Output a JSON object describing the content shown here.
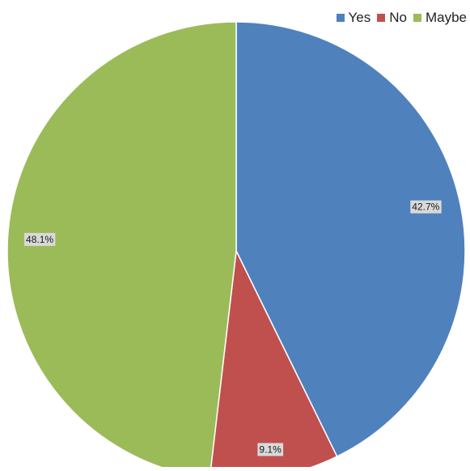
{
  "chart_data": {
    "type": "pie",
    "categories": [
      "Yes",
      "No",
      "Maybe"
    ],
    "values": [
      42.7,
      9.1,
      48.1
    ],
    "data_labels": [
      "42.7%",
      "9.1%",
      "48.1%"
    ],
    "colors": [
      "#4f81bd",
      "#c0504d",
      "#9bbb59"
    ],
    "legend_position": "top-right",
    "start_angle_deg": 0,
    "direction": "clockwise"
  }
}
